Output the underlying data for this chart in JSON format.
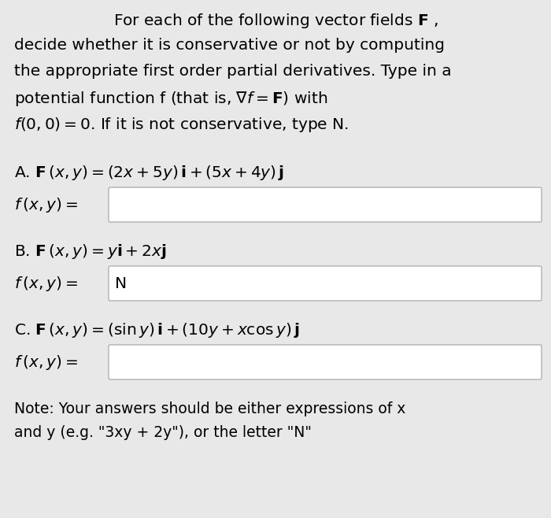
{
  "bg_color": "#e8e8e8",
  "box_color": "#ffffff",
  "box_border": "#b0b0b0",
  "text_color": "#000000",
  "fig_width": 7.0,
  "fig_height": 6.58,
  "dpi": 100,
  "header_lines": [
    "For each of the following vector fields $\\mathbf{F}$ ,",
    "decide whether it is conservative or not by computing",
    "the appropriate first order partial derivatives. Type in a",
    "potential function f (that is, $\\nabla f = \\mathbf{F}$) with",
    "$f(0, 0) = 0$. If it is not conservative, type N."
  ],
  "section_A_line1": "A. $\\mathbf{F}\\,(x, y) = (2x + 5y)\\,\\mathbf{i} + (5x + 4y)\\,\\mathbf{j}$",
  "section_A_line2": "$f\\,(x, y) =$",
  "section_A_fill": "",
  "section_B_line1": "B. $\\mathbf{F}\\,(x, y) = y\\mathbf{i} + 2x\\mathbf{j}$",
  "section_B_line2": "$f\\,(x, y) =$",
  "section_B_fill": "N",
  "section_C_line1": "C. $\\mathbf{F}\\,(x, y) = (\\sin y)\\,\\mathbf{i} + (10y + x\\cos y)\\,\\mathbf{j}$",
  "section_C_line2": "$f\\,(x, y) =$",
  "section_C_fill": "",
  "note_lines": [
    "Note: Your answers should be either expressions of x",
    "and y (e.g. \"3xy + 2y\"), or the letter \"N\""
  ],
  "fs_header": 14.5,
  "fs_math": 14.5,
  "fs_note": 13.5
}
